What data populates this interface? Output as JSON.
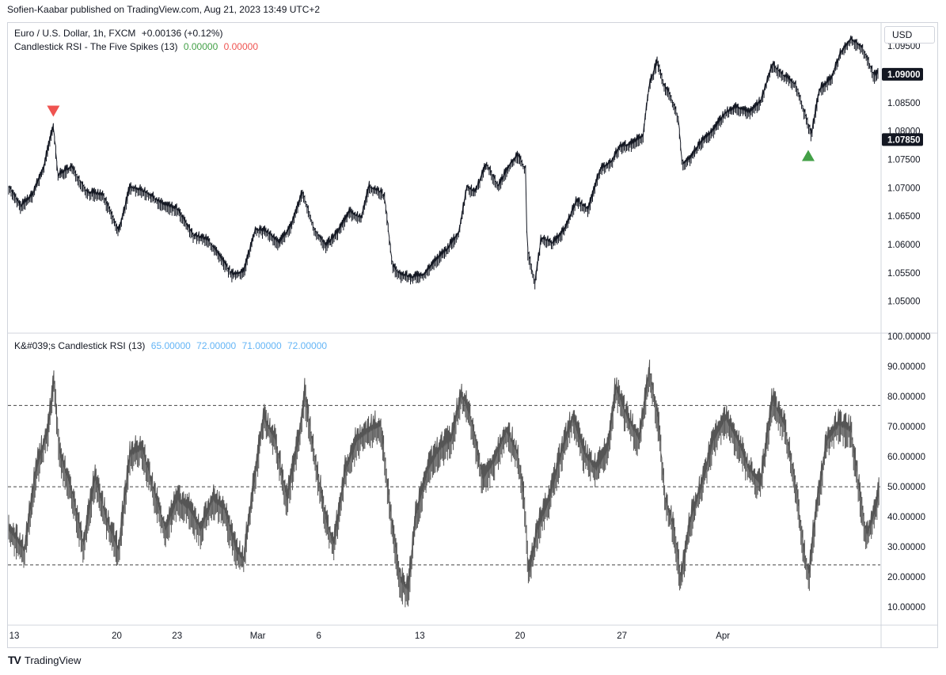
{
  "header": {
    "published": "Sofien-Kaabar published on TradingView.com, Aug 21, 2023 13:49 UTC+2"
  },
  "currency_button": "USD",
  "main_legend": {
    "symbol": "Euro / U.S. Dollar, 1h, FXCM",
    "change": "+0.00136 (+0.12%)",
    "indicator": "Candlestick RSI - The Five Spikes (13)",
    "value_green": "0.00000",
    "value_red": "0.00000"
  },
  "rsi_legend": {
    "name": "K&#039;s Candlestick RSI (13)",
    "v1": "65.00000",
    "v2": "72.00000",
    "v3": "71.00000",
    "v4": "72.00000"
  },
  "footer": {
    "brand": "TradingView",
    "logo": "TV"
  },
  "colors": {
    "up_marker": "#43a047",
    "down_marker": "#ef5350",
    "legend_blue": "#64b5f6",
    "legend_green": "#43a047",
    "legend_red": "#ef5350",
    "grid": "#d1d4dc",
    "line": "#131722",
    "rsi_line": "#555555"
  },
  "chart_data": [
    {
      "type": "line",
      "x_ticks": [
        "13",
        "20",
        "23",
        "Mar",
        "6",
        "13",
        "20",
        "27",
        "Apr"
      ],
      "ylim": [
        1.0455,
        1.0985
      ],
      "y_ticks": [
        "1.05000",
        "1.05500",
        "1.06000",
        "1.06500",
        "1.07000",
        "1.07500",
        "1.08000",
        "1.08500",
        "1.09000",
        "1.09500"
      ],
      "last_price": "1.09000",
      "marker_price": "1.07850",
      "keypoints": [
        [
          0,
          1.07
        ],
        [
          0.015,
          1.0665
        ],
        [
          0.03,
          1.0685
        ],
        [
          0.045,
          1.0735
        ],
        [
          0.052,
          1.078
        ],
        [
          0.057,
          1.0805
        ],
        [
          0.063,
          1.072
        ],
        [
          0.08,
          1.0735
        ],
        [
          0.1,
          1.069
        ],
        [
          0.12,
          1.0685
        ],
        [
          0.13,
          1.0655
        ],
        [
          0.14,
          1.062
        ],
        [
          0.155,
          1.07
        ],
        [
          0.175,
          1.069
        ],
        [
          0.195,
          1.067
        ],
        [
          0.215,
          1.066
        ],
        [
          0.235,
          1.0615
        ],
        [
          0.255,
          1.0605
        ],
        [
          0.27,
          1.0575
        ],
        [
          0.285,
          1.0545
        ],
        [
          0.3,
          1.055
        ],
        [
          0.315,
          1.0625
        ],
        [
          0.33,
          1.062
        ],
        [
          0.345,
          1.06
        ],
        [
          0.36,
          1.063
        ],
        [
          0.375,
          1.069
        ],
        [
          0.39,
          1.0625
        ],
        [
          0.405,
          1.0595
        ],
        [
          0.42,
          1.062
        ],
        [
          0.435,
          1.0655
        ],
        [
          0.45,
          1.0645
        ],
        [
          0.46,
          1.07
        ],
        [
          0.475,
          1.069
        ],
        [
          0.48,
          1.068
        ],
        [
          0.49,
          1.056
        ],
        [
          0.5,
          1.0545
        ],
        [
          0.515,
          1.054
        ],
        [
          0.53,
          1.0545
        ],
        [
          0.545,
          1.057
        ],
        [
          0.56,
          1.059
        ],
        [
          0.575,
          1.062
        ],
        [
          0.585,
          1.07
        ],
        [
          0.595,
          1.069
        ],
        [
          0.61,
          1.074
        ],
        [
          0.625,
          1.07
        ],
        [
          0.64,
          1.074
        ],
        [
          0.65,
          1.0755
        ],
        [
          0.66,
          1.073
        ],
        [
          0.662,
          1.059
        ],
        [
          0.672,
          1.053
        ],
        [
          0.68,
          1.061
        ],
        [
          0.695,
          1.06
        ],
        [
          0.71,
          1.0625
        ],
        [
          0.725,
          1.0675
        ],
        [
          0.74,
          1.066
        ],
        [
          0.755,
          1.073
        ],
        [
          0.77,
          1.0745
        ],
        [
          0.78,
          1.077
        ],
        [
          0.795,
          1.0775
        ],
        [
          0.81,
          1.079
        ],
        [
          0.818,
          1.088
        ],
        [
          0.828,
          1.092
        ],
        [
          0.836,
          1.088
        ],
        [
          0.845,
          1.086
        ],
        [
          0.855,
          1.082
        ],
        [
          0.86,
          1.074
        ],
        [
          0.87,
          1.075
        ],
        [
          0.885,
          1.078
        ],
        [
          0.9,
          1.08
        ],
        [
          0.915,
          1.083
        ],
        [
          0.93,
          1.084
        ],
        [
          0.945,
          1.083
        ],
        [
          0.96,
          1.085
        ],
        [
          0.975,
          1.0915
        ],
        [
          0.99,
          1.0895
        ],
        [
          1.005,
          1.088
        ],
        [
          1.015,
          1.0835
        ],
        [
          1.025,
          1.0792
        ],
        [
          1.035,
          1.087
        ],
        [
          1.05,
          1.089
        ],
        [
          1.062,
          1.0935
        ],
        [
          1.075,
          1.096
        ],
        [
          1.09,
          1.0945
        ],
        [
          1.098,
          1.092
        ],
        [
          1.105,
          1.0895
        ],
        [
          1.11,
          1.09
        ]
      ],
      "markers": [
        {
          "type": "down",
          "x": 0.057,
          "y": 1.0835
        },
        {
          "type": "up",
          "x": 1.021,
          "y": 1.0757
        }
      ]
    },
    {
      "type": "line",
      "ylim": [
        4.5,
        100
      ],
      "y_ticks": [
        "10.00000",
        "20.00000",
        "30.00000",
        "40.00000",
        "50.00000",
        "60.00000",
        "70.00000",
        "80.00000",
        "90.00000",
        "100.00000"
      ],
      "levels": [
        24,
        50,
        77
      ],
      "keypoints": [
        [
          0,
          35
        ],
        [
          0.02,
          28
        ],
        [
          0.035,
          55
        ],
        [
          0.05,
          68
        ],
        [
          0.058,
          85
        ],
        [
          0.065,
          60
        ],
        [
          0.08,
          48
        ],
        [
          0.095,
          30
        ],
        [
          0.11,
          52
        ],
        [
          0.125,
          38
        ],
        [
          0.14,
          28
        ],
        [
          0.155,
          60
        ],
        [
          0.17,
          62
        ],
        [
          0.185,
          48
        ],
        [
          0.2,
          35
        ],
        [
          0.215,
          45
        ],
        [
          0.23,
          42
        ],
        [
          0.245,
          35
        ],
        [
          0.26,
          45
        ],
        [
          0.275,
          42
        ],
        [
          0.29,
          28
        ],
        [
          0.3,
          25
        ],
        [
          0.31,
          45
        ],
        [
          0.325,
          72
        ],
        [
          0.34,
          65
        ],
        [
          0.355,
          45
        ],
        [
          0.37,
          65
        ],
        [
          0.378,
          80
        ],
        [
          0.39,
          60
        ],
        [
          0.405,
          38
        ],
        [
          0.415,
          30
        ],
        [
          0.43,
          55
        ],
        [
          0.445,
          65
        ],
        [
          0.46,
          68
        ],
        [
          0.475,
          70
        ],
        [
          0.49,
          35
        ],
        [
          0.5,
          18
        ],
        [
          0.51,
          15
        ],
        [
          0.52,
          40
        ],
        [
          0.535,
          55
        ],
        [
          0.55,
          62
        ],
        [
          0.565,
          65
        ],
        [
          0.578,
          80
        ],
        [
          0.59,
          72
        ],
        [
          0.605,
          52
        ],
        [
          0.62,
          58
        ],
        [
          0.635,
          68
        ],
        [
          0.65,
          60
        ],
        [
          0.658,
          45
        ],
        [
          0.664,
          20
        ],
        [
          0.675,
          35
        ],
        [
          0.69,
          45
        ],
        [
          0.705,
          60
        ],
        [
          0.72,
          72
        ],
        [
          0.735,
          60
        ],
        [
          0.75,
          55
        ],
        [
          0.765,
          62
        ],
        [
          0.775,
          82
        ],
        [
          0.79,
          72
        ],
        [
          0.805,
          65
        ],
        [
          0.818,
          88
        ],
        [
          0.83,
          70
        ],
        [
          0.838,
          45
        ],
        [
          0.85,
          35
        ],
        [
          0.858,
          18
        ],
        [
          0.87,
          38
        ],
        [
          0.885,
          50
        ],
        [
          0.9,
          65
        ],
        [
          0.915,
          72
        ],
        [
          0.93,
          65
        ],
        [
          0.945,
          55
        ],
        [
          0.96,
          50
        ],
        [
          0.975,
          78
        ],
        [
          0.99,
          70
        ],
        [
          1.005,
          50
        ],
        [
          1.015,
          28
        ],
        [
          1.022,
          20
        ],
        [
          1.03,
          40
        ],
        [
          1.045,
          65
        ],
        [
          1.06,
          70
        ],
        [
          1.075,
          68
        ],
        [
          1.085,
          50
        ],
        [
          1.095,
          33
        ],
        [
          1.105,
          40
        ],
        [
          1.112,
          48
        ]
      ]
    }
  ]
}
